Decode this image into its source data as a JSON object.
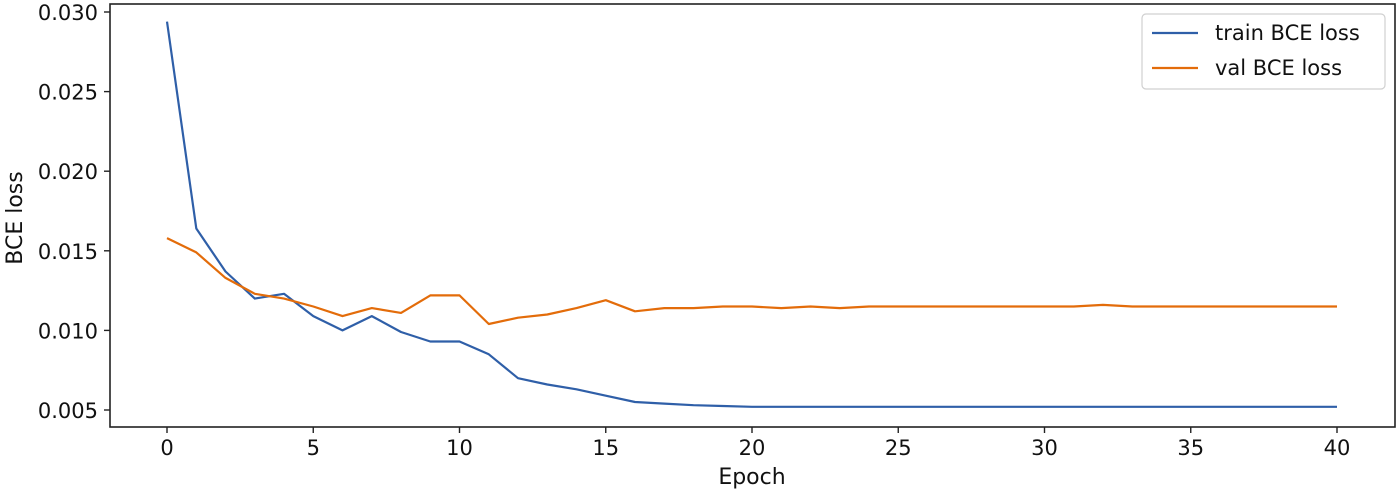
{
  "chart_data": {
    "type": "line",
    "title": "",
    "xlabel": "Epoch",
    "ylabel": "BCE loss",
    "xlim": [
      -2,
      42
    ],
    "ylim": [
      0.004,
      0.0303
    ],
    "xticks": [
      0,
      5,
      10,
      15,
      20,
      25,
      30,
      35,
      40
    ],
    "xtick_labels": [
      "0",
      "5",
      "10",
      "15",
      "20",
      "25",
      "30",
      "35",
      "40"
    ],
    "yticks": [
      0.005,
      0.01,
      0.015,
      0.02,
      0.025,
      0.03
    ],
    "ytick_labels": [
      "0.005",
      "0.010",
      "0.015",
      "0.020",
      "0.025",
      "0.030"
    ],
    "grid": false,
    "legend_position": "upper right",
    "x": [
      0,
      1,
      2,
      3,
      4,
      5,
      6,
      7,
      8,
      9,
      10,
      11,
      12,
      13,
      14,
      15,
      16,
      17,
      18,
      19,
      20,
      21,
      22,
      23,
      24,
      25,
      26,
      27,
      28,
      29,
      30,
      31,
      32,
      33,
      34,
      35,
      36,
      37,
      38,
      39,
      40
    ],
    "series": [
      {
        "name": "train BCE loss",
        "color": "#2f5fa8",
        "values": [
          0.0294,
          0.0164,
          0.0137,
          0.012,
          0.0123,
          0.0109,
          0.01,
          0.0109,
          0.0099,
          0.0093,
          0.0093,
          0.0085,
          0.007,
          0.0066,
          0.0063,
          0.0059,
          0.0055,
          0.0054,
          0.0053,
          0.00525,
          0.0052,
          0.0052,
          0.0052,
          0.0052,
          0.0052,
          0.0052,
          0.0052,
          0.0052,
          0.0052,
          0.0052,
          0.0052,
          0.0052,
          0.0052,
          0.0052,
          0.0052,
          0.0052,
          0.0052,
          0.0052,
          0.0052,
          0.0052,
          0.0052
        ]
      },
      {
        "name": "val BCE loss",
        "color": "#e36c0a",
        "values": [
          0.0158,
          0.0149,
          0.0133,
          0.0123,
          0.012,
          0.0115,
          0.0109,
          0.0114,
          0.0111,
          0.0122,
          0.0122,
          0.0104,
          0.0108,
          0.011,
          0.0114,
          0.0119,
          0.0112,
          0.0114,
          0.0114,
          0.0115,
          0.0115,
          0.0114,
          0.0115,
          0.0114,
          0.0115,
          0.0115,
          0.0115,
          0.0115,
          0.0115,
          0.0115,
          0.0115,
          0.0115,
          0.0116,
          0.0115,
          0.0115,
          0.0115,
          0.0115,
          0.0115,
          0.0115,
          0.0115,
          0.0115
        ]
      }
    ]
  },
  "legend": {
    "items": [
      {
        "label": "train BCE loss",
        "color": "#2f5fa8"
      },
      {
        "label": "val BCE loss",
        "color": "#e36c0a"
      }
    ]
  }
}
